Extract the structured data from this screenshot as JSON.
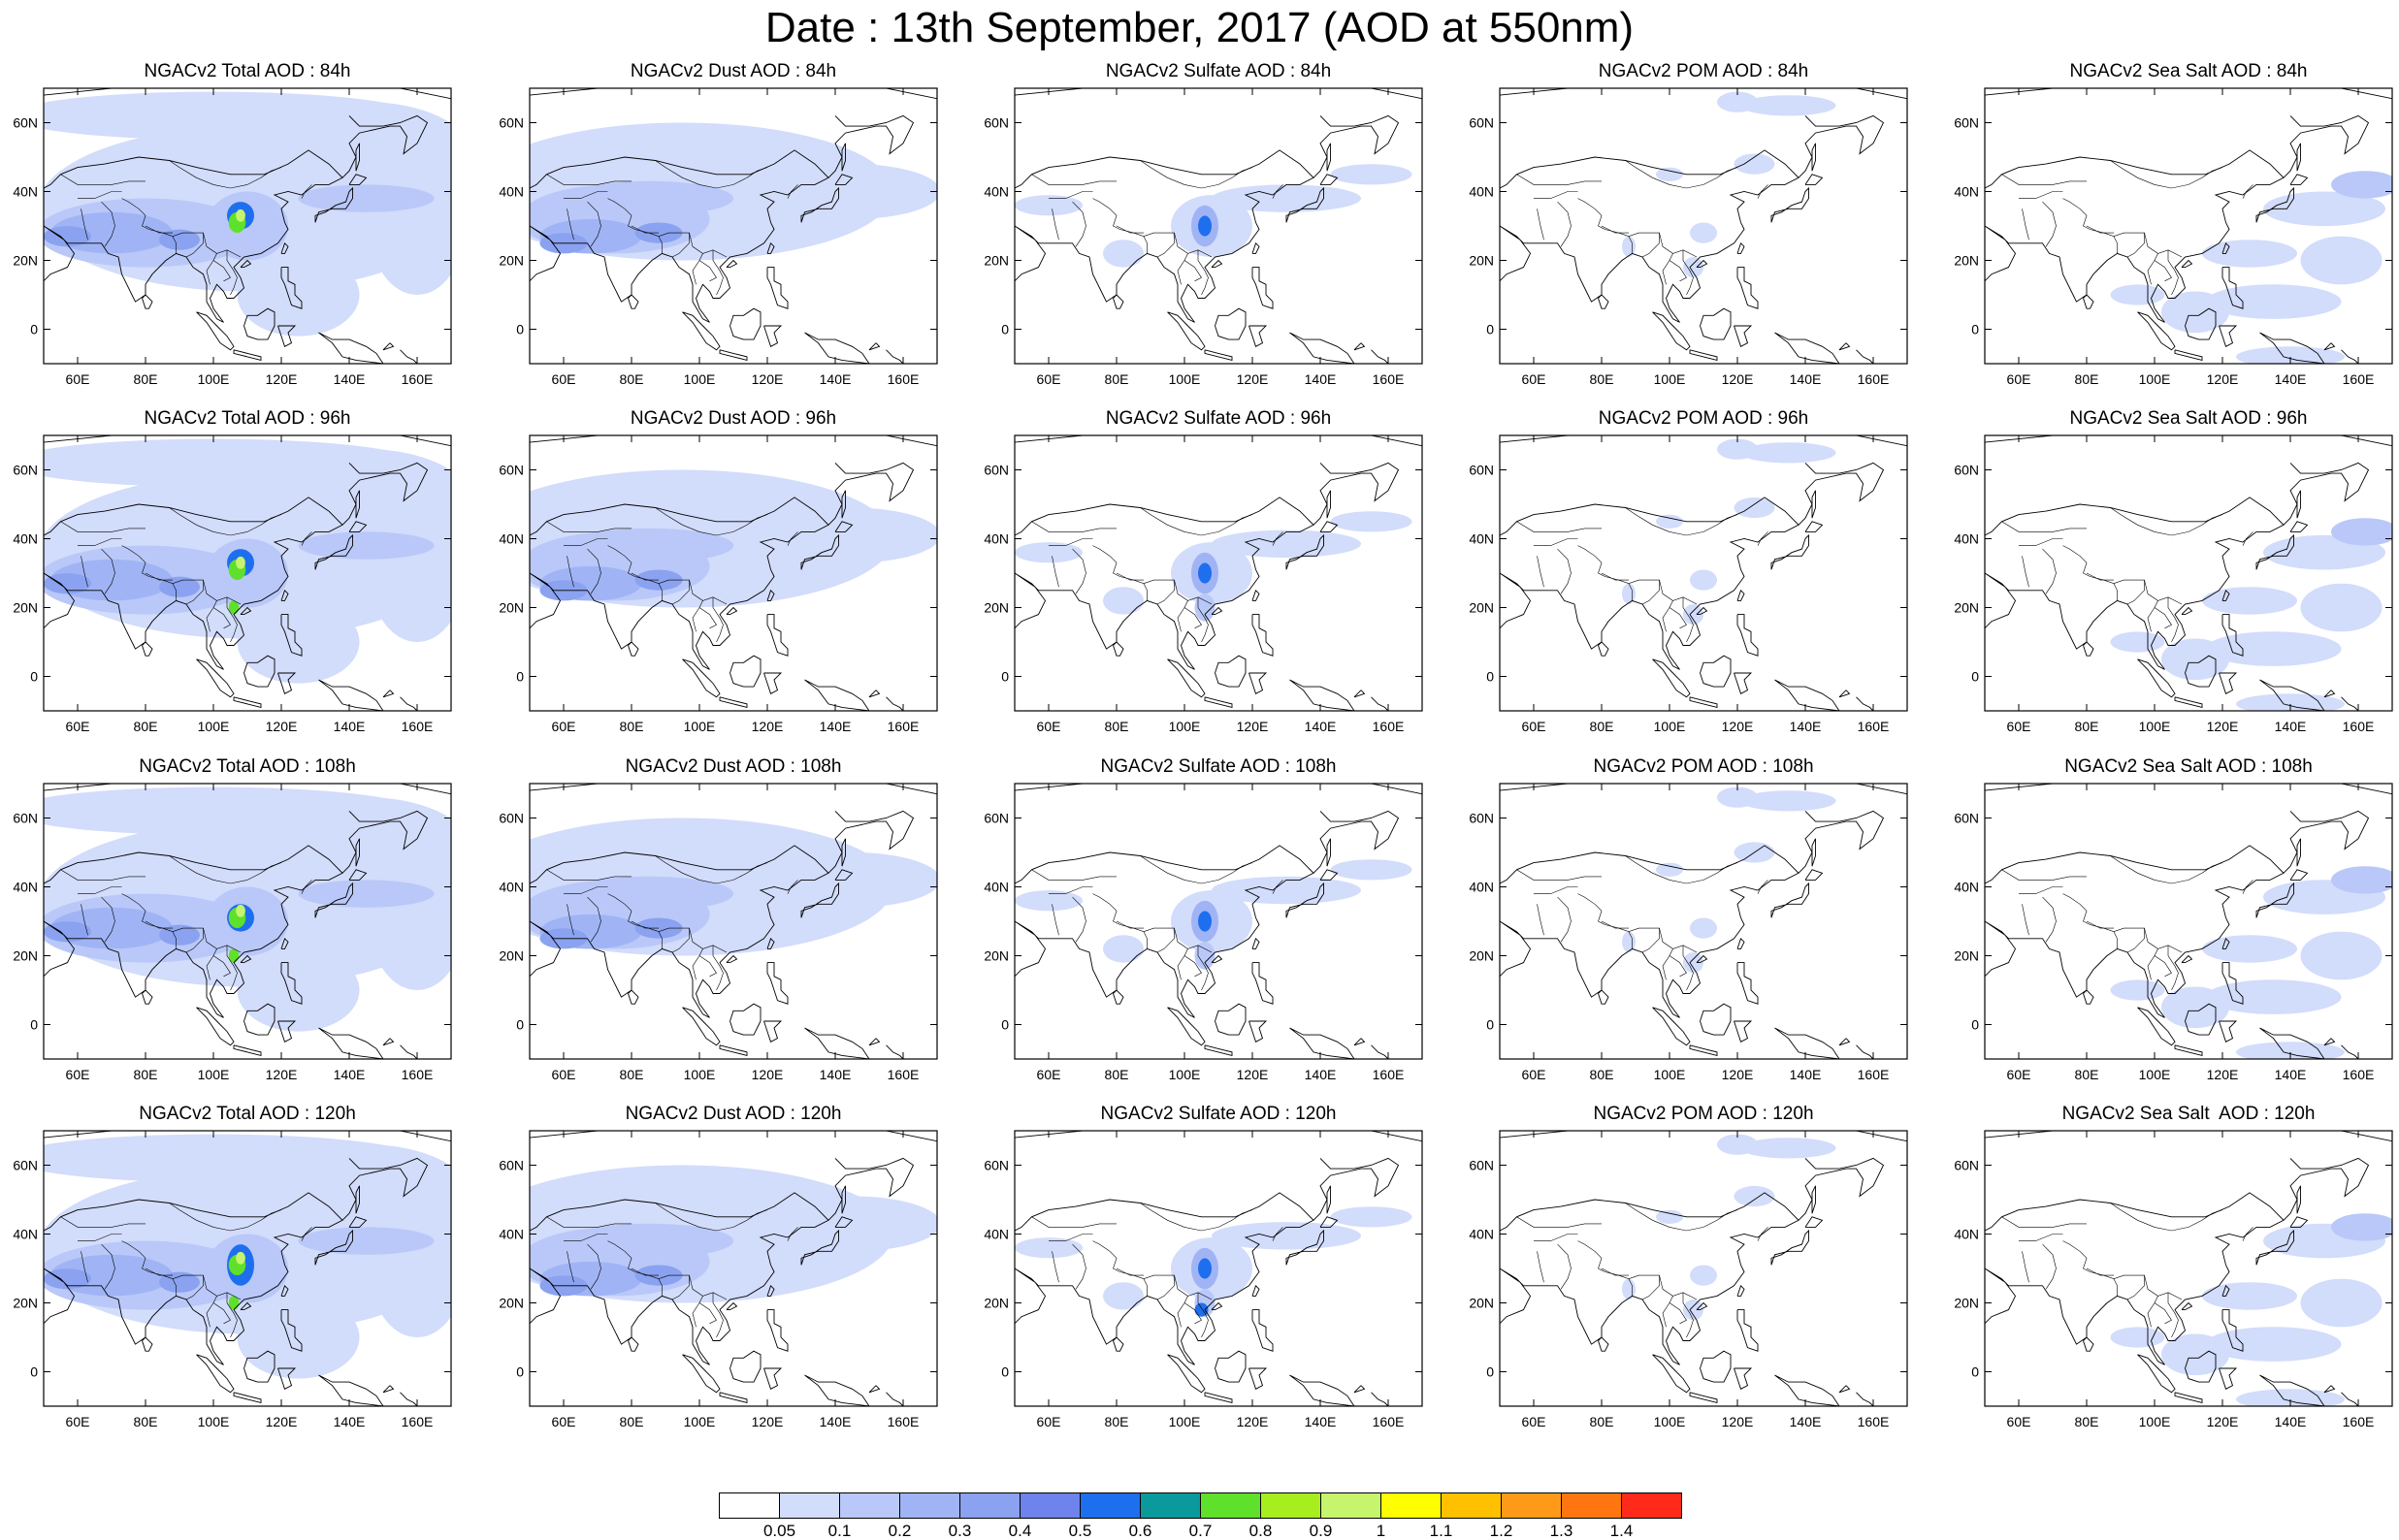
{
  "title": "Date : 13th September, 2017 (AOD at 550nm)",
  "panels": [
    [
      {
        "title": "NGACv2 Total AOD : 84h",
        "species": "total",
        "hour": 84
      },
      {
        "title": "NGACv2 Dust AOD : 84h",
        "species": "dust",
        "hour": 84
      },
      {
        "title": "NGACv2 Sulfate AOD : 84h",
        "species": "sulfate",
        "hour": 84
      },
      {
        "title": "NGACv2 POM AOD : 84h",
        "species": "pom",
        "hour": 84
      },
      {
        "title": "NGACv2 Sea Salt AOD : 84h",
        "species": "seasalt",
        "hour": 84
      }
    ],
    [
      {
        "title": "NGACv2 Total AOD : 96h",
        "species": "total",
        "hour": 96
      },
      {
        "title": "NGACv2 Dust AOD : 96h",
        "species": "dust",
        "hour": 96
      },
      {
        "title": "NGACv2 Sulfate AOD : 96h",
        "species": "sulfate",
        "hour": 96
      },
      {
        "title": "NGACv2 POM AOD : 96h",
        "species": "pom",
        "hour": 96
      },
      {
        "title": "NGACv2 Sea Salt AOD : 96h",
        "species": "seasalt",
        "hour": 96
      }
    ],
    [
      {
        "title": "NGACv2 Total AOD : 108h",
        "species": "total",
        "hour": 108
      },
      {
        "title": "NGACv2 Dust AOD : 108h",
        "species": "dust",
        "hour": 108
      },
      {
        "title": "NGACv2 Sulfate AOD : 108h",
        "species": "sulfate",
        "hour": 108
      },
      {
        "title": "NGACv2 POM AOD : 108h",
        "species": "pom",
        "hour": 108
      },
      {
        "title": "NGACv2 Sea Salt AOD : 108h",
        "species": "seasalt",
        "hour": 108
      }
    ],
    [
      {
        "title": "NGACv2 Total AOD : 120h",
        "species": "total",
        "hour": 120
      },
      {
        "title": "NGACv2 Dust AOD : 120h",
        "species": "dust",
        "hour": 120
      },
      {
        "title": "NGACv2 Sulfate AOD : 120h",
        "species": "sulfate",
        "hour": 120
      },
      {
        "title": "NGACv2 POM AOD : 120h",
        "species": "pom",
        "hour": 120
      },
      {
        "title": "NGACv2 Sea Salt  AOD : 120h",
        "species": "seasalt",
        "hour": 120
      }
    ]
  ],
  "map_extent": {
    "lon_min": 50,
    "lon_max": 170,
    "lat_min": -10,
    "lat_max": 70
  },
  "lat_ticks": [
    {
      "value": 60,
      "label": "60N"
    },
    {
      "value": 40,
      "label": "40N"
    },
    {
      "value": 20,
      "label": "20N"
    },
    {
      "value": 0,
      "label": "0"
    }
  ],
  "lon_ticks": [
    {
      "value": 60,
      "label": "60E"
    },
    {
      "value": 80,
      "label": "80E"
    },
    {
      "value": 100,
      "label": "100E"
    },
    {
      "value": 120,
      "label": "120E"
    },
    {
      "value": 140,
      "label": "140E"
    },
    {
      "value": 160,
      "label": "160E"
    }
  ],
  "colorbar": {
    "levels": [
      "0.05",
      "0.1",
      "0.2",
      "0.3",
      "0.4",
      "0.5",
      "0.6",
      "0.7",
      "0.8",
      "0.9",
      "1",
      "1.1",
      "1.2",
      "1.3",
      "1.4"
    ],
    "colors": [
      "#ffffff",
      "#d2dcfb",
      "#b9c8f8",
      "#a0b4f5",
      "#8aa2f0",
      "#6f83ec",
      "#1e6fee",
      "#0b9a9b",
      "#5fe02a",
      "#a6ee1e",
      "#c6f46d",
      "#ffff00",
      "#ffc000",
      "#ff9a18",
      "#ff7610",
      "#ff2a1a"
    ]
  }
}
